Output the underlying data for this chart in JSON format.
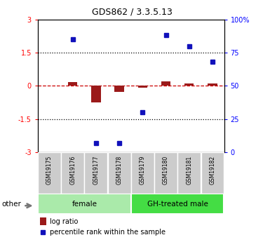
{
  "title": "GDS862 / 3.3.5.13",
  "samples": [
    "GSM19175",
    "GSM19176",
    "GSM19177",
    "GSM19178",
    "GSM19179",
    "GSM19180",
    "GSM19181",
    "GSM19182"
  ],
  "log_ratio": [
    0.0,
    0.18,
    -0.75,
    -0.28,
    -0.07,
    0.22,
    0.12,
    0.12
  ],
  "percentile_rank": [
    null,
    85,
    7,
    7,
    30,
    88,
    80,
    68
  ],
  "groups": [
    {
      "label": "female",
      "samples": [
        0,
        1,
        2,
        3
      ],
      "color": "#aaeaaa"
    },
    {
      "label": "GH-treated male",
      "samples": [
        4,
        5,
        6,
        7
      ],
      "color": "#44dd44"
    }
  ],
  "ylim": [
    -3,
    3
  ],
  "yticks_left": [
    -3,
    -1.5,
    0,
    1.5,
    3
  ],
  "yticks_right": [
    0,
    25,
    50,
    75,
    100
  ],
  "bar_color": "#9b1a1a",
  "dot_color": "#1111bb",
  "zero_line_color": "#cc0000",
  "dotted_line_color": "#000000",
  "sample_box_color": "#cccccc",
  "other_label": "other",
  "legend_bar_label": "log ratio",
  "legend_dot_label": "percentile rank within the sample",
  "title_fontsize": 9,
  "tick_fontsize": 7,
  "sample_fontsize": 5.5,
  "group_fontsize": 7.5,
  "legend_fontsize": 7
}
